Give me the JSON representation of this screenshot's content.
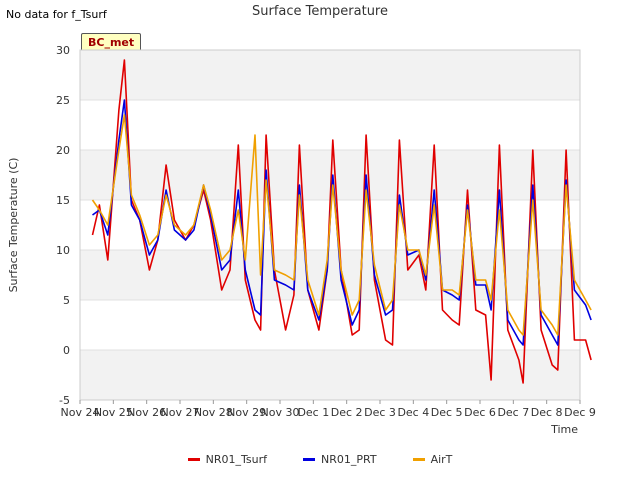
{
  "corner_note": "No data for f_Tsurf",
  "badge": "BC_met",
  "chart_data": {
    "type": "line",
    "title": "Surface Temperature",
    "xlabel": "Time",
    "ylabel": "Surface Temperature (C)",
    "ylim": [
      -5,
      30
    ],
    "yticks": [
      -5,
      0,
      5,
      10,
      15,
      20,
      25,
      30
    ],
    "xlim": [
      "Nov 24",
      "Dec 9"
    ],
    "xticks": [
      "Nov 24",
      "Nov 25",
      "Nov 26",
      "Nov 27",
      "Nov 28",
      "Nov 29",
      "Nov 30",
      "Dec 1",
      "Dec 2",
      "Dec 3",
      "Dec 4",
      "Dec 5",
      "Dec 6",
      "Dec 7",
      "Dec 8",
      "Dec 9"
    ],
    "grid": "horizontal bands",
    "legend_position": "bottom",
    "series": [
      {
        "name": "NR01_Tsurf",
        "color": "#e00000",
        "points": [
          [
            "Nov 24 09:00",
            11.5
          ],
          [
            "Nov 24 14:00",
            14.5
          ],
          [
            "Nov 24 20:00",
            9.0
          ],
          [
            "Nov 25 04:00",
            24.0
          ],
          [
            "Nov 25 08:00",
            29.0
          ],
          [
            "Nov 25 13:00",
            15.0
          ],
          [
            "Nov 25 19:00",
            13.0
          ],
          [
            "Nov 26 02:00",
            8.0
          ],
          [
            "Nov 26 08:00",
            11.0
          ],
          [
            "Nov 26 14:00",
            18.5
          ],
          [
            "Nov 26 20:00",
            13.0
          ],
          [
            "Nov 27 04:00",
            11.0
          ],
          [
            "Nov 27 10:00",
            12.5
          ],
          [
            "Nov 27 17:00",
            16.0
          ],
          [
            "Nov 27 22:00",
            13.0
          ],
          [
            "Nov 28 06:00",
            6.0
          ],
          [
            "Nov 28 12:00",
            8.0
          ],
          [
            "Nov 28 18:00",
            20.5
          ],
          [
            "Nov 28 23:00",
            7.0
          ],
          [
            "Nov 29 06:00",
            3.0
          ],
          [
            "Nov 29 10:00",
            2.0
          ],
          [
            "Nov 29 14:00",
            21.5
          ],
          [
            "Nov 29 20:00",
            8.0
          ],
          [
            "Nov 30 04:00",
            2.0
          ],
          [
            "Nov 30 10:00",
            5.5
          ],
          [
            "Nov 30 14:00",
            20.5
          ],
          [
            "Nov 30 20:00",
            6.0
          ],
          [
            "Dec 1 04:00",
            2.0
          ],
          [
            "Dec 1 10:00",
            8.0
          ],
          [
            "Dec 1 14:00",
            21.0
          ],
          [
            "Dec 1 20:00",
            8.0
          ],
          [
            "Dec 2 04:00",
            1.5
          ],
          [
            "Dec 2 09:00",
            2.0
          ],
          [
            "Dec 2 14:00",
            21.5
          ],
          [
            "Dec 2 20:00",
            7.0
          ],
          [
            "Dec 3 04:00",
            1.0
          ],
          [
            "Dec 3 09:00",
            0.5
          ],
          [
            "Dec 3 14:00",
            21.0
          ],
          [
            "Dec 3 20:00",
            8.0
          ],
          [
            "Dec 4 04:00",
            9.5
          ],
          [
            "Dec 4 09:00",
            6.0
          ],
          [
            "Dec 4 15:00",
            20.5
          ],
          [
            "Dec 4 21:00",
            4.0
          ],
          [
            "Dec 5 04:00",
            3.0
          ],
          [
            "Dec 5 09:00",
            2.5
          ],
          [
            "Dec 5 15:00",
            16.0
          ],
          [
            "Dec 5 21:00",
            4.0
          ],
          [
            "Dec 6 04:00",
            3.5
          ],
          [
            "Dec 6 08:00",
            -3.0
          ],
          [
            "Dec 6 14:00",
            20.5
          ],
          [
            "Dec 6 20:00",
            2.0
          ],
          [
            "Dec 7 04:00",
            -1.0
          ],
          [
            "Dec 7 07:00",
            -3.3
          ],
          [
            "Dec 7 14:00",
            20.0
          ],
          [
            "Dec 7 20:00",
            2.0
          ],
          [
            "Dec 8 04:00",
            -1.5
          ],
          [
            "Dec 8 08:00",
            -2.0
          ],
          [
            "Dec 8 14:00",
            20.0
          ],
          [
            "Dec 8 20:00",
            1.0
          ],
          [
            "Dec 9 04:00",
            1.0
          ],
          [
            "Dec 9 08:00",
            -1.0
          ]
        ]
      },
      {
        "name": "NR01_PRT",
        "color": "#0000e0",
        "points": [
          [
            "Nov 24 09:00",
            13.5
          ],
          [
            "Nov 24 14:00",
            14.0
          ],
          [
            "Nov 24 20:00",
            11.5
          ],
          [
            "Nov 25 04:00",
            21.0
          ],
          [
            "Nov 25 08:00",
            25.0
          ],
          [
            "Nov 25 13:00",
            14.5
          ],
          [
            "Nov 25 19:00",
            13.0
          ],
          [
            "Nov 26 02:00",
            9.5
          ],
          [
            "Nov 26 08:00",
            11.0
          ],
          [
            "Nov 26 14:00",
            16.0
          ],
          [
            "Nov 26 20:00",
            12.0
          ],
          [
            "Nov 27 04:00",
            11.0
          ],
          [
            "Nov 27 10:00",
            12.0
          ],
          [
            "Nov 27 17:00",
            16.5
          ],
          [
            "Nov 27 22:00",
            13.5
          ],
          [
            "Nov 28 06:00",
            8.0
          ],
          [
            "Nov 28 12:00",
            9.0
          ],
          [
            "Nov 28 18:00",
            16.0
          ],
          [
            "Nov 28 23:00",
            8.0
          ],
          [
            "Nov 29 06:00",
            4.0
          ],
          [
            "Nov 29 10:00",
            3.5
          ],
          [
            "Nov 29 14:00",
            18.0
          ],
          [
            "Nov 29 20:00",
            7.0
          ],
          [
            "Nov 30 04:00",
            6.5
          ],
          [
            "Nov 30 10:00",
            6.0
          ],
          [
            "Nov 30 14:00",
            16.5
          ],
          [
            "Nov 30 20:00",
            6.0
          ],
          [
            "Dec 1 04:00",
            3.0
          ],
          [
            "Dec 1 10:00",
            8.0
          ],
          [
            "Dec 1 14:00",
            17.5
          ],
          [
            "Dec 1 20:00",
            7.0
          ],
          [
            "Dec 2 04:00",
            2.5
          ],
          [
            "Dec 2 09:00",
            4.0
          ],
          [
            "Dec 2 14:00",
            17.5
          ],
          [
            "Dec 2 20:00",
            7.5
          ],
          [
            "Dec 3 04:00",
            3.5
          ],
          [
            "Dec 3 09:00",
            4.0
          ],
          [
            "Dec 3 14:00",
            15.5
          ],
          [
            "Dec 3 20:00",
            9.5
          ],
          [
            "Dec 4 04:00",
            10.0
          ],
          [
            "Dec 4 09:00",
            7.0
          ],
          [
            "Dec 4 15:00",
            16.0
          ],
          [
            "Dec 4 21:00",
            6.0
          ],
          [
            "Dec 5 04:00",
            5.5
          ],
          [
            "Dec 5 09:00",
            5.0
          ],
          [
            "Dec 5 15:00",
            14.5
          ],
          [
            "Dec 5 21:00",
            6.5
          ],
          [
            "Dec 6 04:00",
            6.5
          ],
          [
            "Dec 6 08:00",
            4.0
          ],
          [
            "Dec 6 14:00",
            16.0
          ],
          [
            "Dec 6 20:00",
            3.0
          ],
          [
            "Dec 7 04:00",
            1.0
          ],
          [
            "Dec 7 07:00",
            0.5
          ],
          [
            "Dec 7 14:00",
            16.5
          ],
          [
            "Dec 7 20:00",
            3.5
          ],
          [
            "Dec 8 04:00",
            1.5
          ],
          [
            "Dec 8 08:00",
            0.5
          ],
          [
            "Dec 8 14:00",
            17.0
          ],
          [
            "Dec 8 20:00",
            6.0
          ],
          [
            "Dec 9 04:00",
            4.5
          ],
          [
            "Dec 9 08:00",
            3.0
          ]
        ]
      },
      {
        "name": "AirT",
        "color": "#f0a000",
        "points": [
          [
            "Nov 24 09:00",
            15.0
          ],
          [
            "Nov 24 14:00",
            14.0
          ],
          [
            "Nov 24 20:00",
            12.5
          ],
          [
            "Nov 25 04:00",
            20.0
          ],
          [
            "Nov 25 08:00",
            23.5
          ],
          [
            "Nov 25 13:00",
            15.5
          ],
          [
            "Nov 25 19:00",
            13.5
          ],
          [
            "Nov 26 02:00",
            10.5
          ],
          [
            "Nov 26 08:00",
            11.5
          ],
          [
            "Nov 26 14:00",
            15.5
          ],
          [
            "Nov 26 20:00",
            12.5
          ],
          [
            "Nov 27 04:00",
            11.5
          ],
          [
            "Nov 27 10:00",
            12.5
          ],
          [
            "Nov 27 17:00",
            16.5
          ],
          [
            "Nov 27 22:00",
            14.0
          ],
          [
            "Nov 28 06:00",
            9.0
          ],
          [
            "Nov 28 12:00",
            10.0
          ],
          [
            "Nov 28 18:00",
            14.0
          ],
          [
            "Nov 28 23:00",
            9.0
          ],
          [
            "Nov 29 06:00",
            21.5
          ],
          [
            "Nov 29 10:00",
            7.5
          ],
          [
            "Nov 29 14:00",
            17.0
          ],
          [
            "Nov 29 20:00",
            8.0
          ],
          [
            "Nov 30 04:00",
            7.5
          ],
          [
            "Nov 30 10:00",
            7.0
          ],
          [
            "Nov 30 14:00",
            15.5
          ],
          [
            "Nov 30 20:00",
            7.0
          ],
          [
            "Dec 1 04:00",
            3.5
          ],
          [
            "Dec 1 10:00",
            9.0
          ],
          [
            "Dec 1 14:00",
            16.5
          ],
          [
            "Dec 1 20:00",
            8.0
          ],
          [
            "Dec 2 04:00",
            3.5
          ],
          [
            "Dec 2 09:00",
            5.0
          ],
          [
            "Dec 2 14:00",
            16.0
          ],
          [
            "Dec 2 20:00",
            8.5
          ],
          [
            "Dec 3 04:00",
            4.0
          ],
          [
            "Dec 3 09:00",
            5.0
          ],
          [
            "Dec 3 14:00",
            14.5
          ],
          [
            "Dec 3 20:00",
            10.0
          ],
          [
            "Dec 4 04:00",
            10.0
          ],
          [
            "Dec 4 09:00",
            7.5
          ],
          [
            "Dec 4 15:00",
            14.5
          ],
          [
            "Dec 4 21:00",
            6.0
          ],
          [
            "Dec 5 04:00",
            6.0
          ],
          [
            "Dec 5 09:00",
            5.5
          ],
          [
            "Dec 5 15:00",
            14.0
          ],
          [
            "Dec 5 21:00",
            7.0
          ],
          [
            "Dec 6 04:00",
            7.0
          ],
          [
            "Dec 6 08:00",
            5.0
          ],
          [
            "Dec 6 14:00",
            14.0
          ],
          [
            "Dec 6 20:00",
            4.0
          ],
          [
            "Dec 7 04:00",
            2.0
          ],
          [
            "Dec 7 07:00",
            1.5
          ],
          [
            "Dec 7 14:00",
            15.0
          ],
          [
            "Dec 7 20:00",
            4.0
          ],
          [
            "Dec 8 04:00",
            2.5
          ],
          [
            "Dec 8 08:00",
            1.5
          ],
          [
            "Dec 8 14:00",
            16.5
          ],
          [
            "Dec 8 20:00",
            7.0
          ],
          [
            "Dec 9 04:00",
            5.0
          ],
          [
            "Dec 9 08:00",
            4.0
          ]
        ]
      }
    ]
  }
}
